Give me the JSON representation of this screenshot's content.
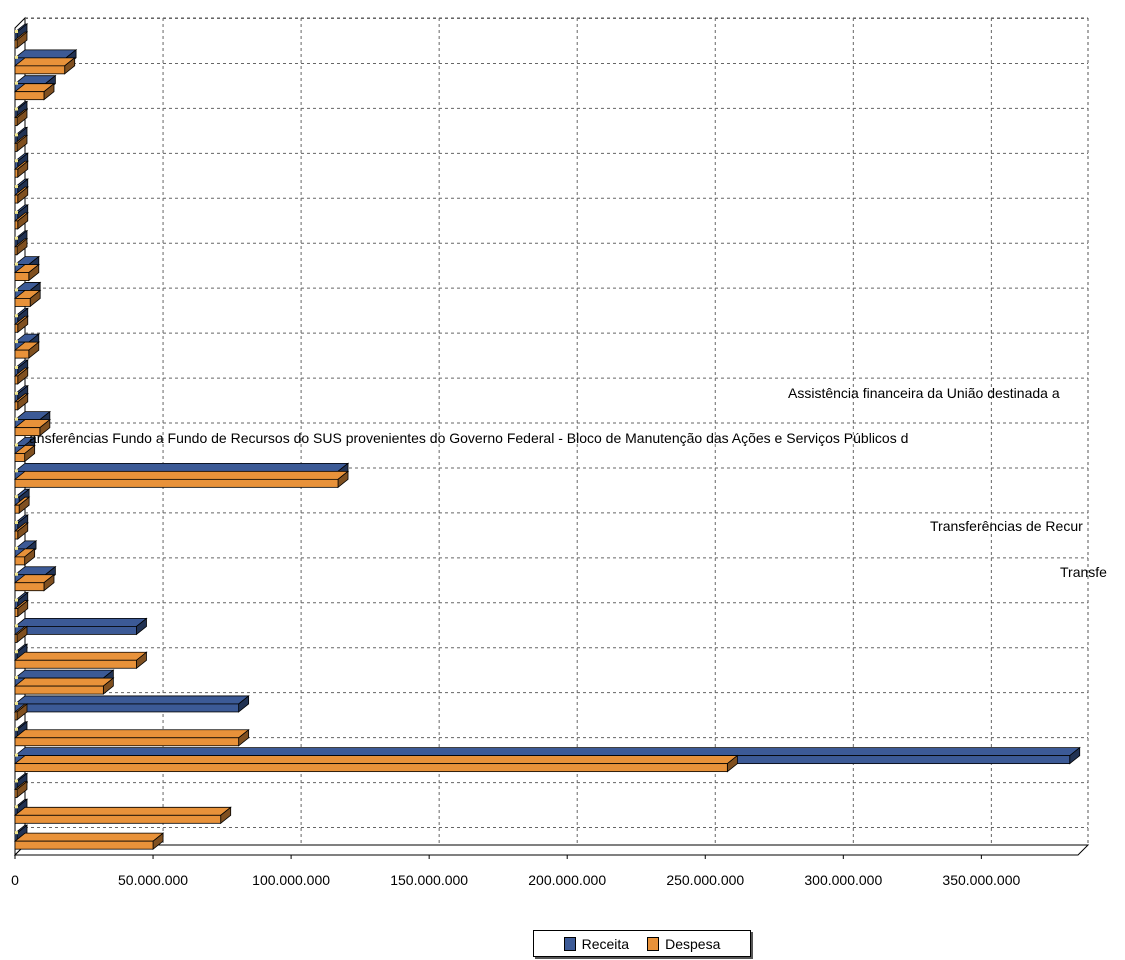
{
  "chart_data": {
    "type": "bar",
    "orientation": "horizontal",
    "style": "3d",
    "grid": true,
    "legend_position": "bottom-center",
    "xlim": [
      0,
      385000000
    ],
    "x_ticks": [
      {
        "value": 0,
        "label": "0"
      },
      {
        "value": 50000000,
        "label": "50.000.000"
      },
      {
        "value": 100000000,
        "label": "100.000.000"
      },
      {
        "value": 150000000,
        "label": "150.000.000"
      },
      {
        "value": 200000000,
        "label": "200.000.000"
      },
      {
        "value": 250000000,
        "label": "250.000.000"
      },
      {
        "value": 300000000,
        "label": "300.000.000"
      },
      {
        "value": 350000000,
        "label": "350.000.000"
      }
    ],
    "series": [
      {
        "name": "Receita",
        "color": "#3c5a96",
        "values": [
          0,
          18500000,
          11000000,
          0,
          0,
          1000000,
          1000000,
          1000000,
          0,
          5000000,
          5500000,
          1000000,
          5000000,
          1000000,
          1000000,
          9000000,
          3500000,
          117000000,
          1500000,
          1000000,
          4000000,
          11000000,
          1000000,
          44000000,
          0,
          32000000,
          81000000,
          0,
          382000000,
          0,
          0,
          0
        ]
      },
      {
        "name": "Despesa",
        "color": "#e8923a",
        "values": [
          0,
          18000000,
          10500000,
          0,
          0,
          1000000,
          1000000,
          1000000,
          0,
          5000000,
          5500000,
          1000000,
          5000000,
          1000000,
          1000000,
          9000000,
          3500000,
          117000000,
          1500000,
          1000000,
          3500000,
          10500000,
          1000000,
          0,
          44000000,
          32000000,
          0,
          81000000,
          258000000,
          0,
          74500000,
          50000000
        ]
      }
    ],
    "annotations": [
      "Assistência financeira da União destinada a",
      "ansferências Fundo a Fundo de Recursos do SUS provenientes do Governo Federal - Bloco de Manutenção das Ações e Serviços Públicos d",
      "Transferências de Recur",
      "Transfe"
    ]
  },
  "legend": {
    "items": [
      {
        "label": "Receita",
        "color": "#3c5a96"
      },
      {
        "label": "Despesa",
        "color": "#e8923a"
      }
    ]
  }
}
